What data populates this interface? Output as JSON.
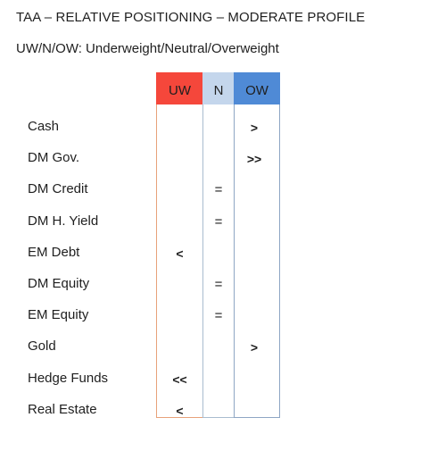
{
  "title": "TAA – RELATIVE POSITIONING – MODERATE PROFILE",
  "subtitle": "UW/N/OW: Underweight/Neutral/Overweight",
  "columns": {
    "uw": {
      "label": "UW",
      "color": "#f5473b"
    },
    "n": {
      "label": "N",
      "color": "#c4d6ec"
    },
    "ow": {
      "label": "OW",
      "color": "#4f8ad6"
    }
  },
  "rows": [
    {
      "label": "Cash",
      "column": "ow",
      "mark": ">"
    },
    {
      "label": "DM Gov.",
      "column": "ow",
      "mark": ">>"
    },
    {
      "label": "DM Credit",
      "column": "n",
      "mark": "="
    },
    {
      "label": "DM H. Yield",
      "column": "n",
      "mark": "="
    },
    {
      "label": "EM Debt",
      "column": "uw",
      "mark": "<"
    },
    {
      "label": "DM Equity",
      "column": "n",
      "mark": "="
    },
    {
      "label": "EM Equity",
      "column": "n",
      "mark": "="
    },
    {
      "label": "Gold",
      "column": "ow",
      "mark": ">"
    },
    {
      "label": "Hedge Funds",
      "column": "uw",
      "mark": "<<"
    },
    {
      "label": "Real Estate",
      "column": "uw",
      "mark": "<"
    }
  ]
}
